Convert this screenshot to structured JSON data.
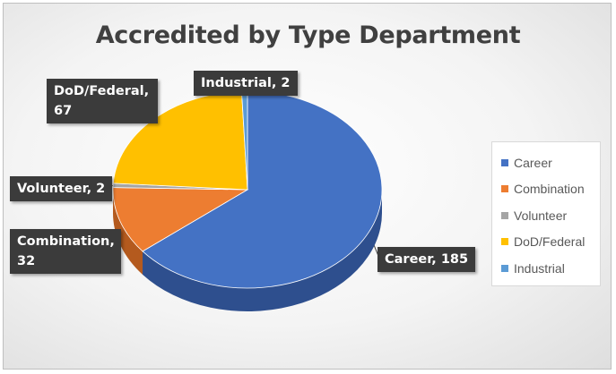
{
  "chart_data": {
    "type": "pie",
    "title": "Accredited by Type Department",
    "slices": [
      {
        "name": "Career",
        "value": 185,
        "label": "Career, 185",
        "color": "#4472C4",
        "side": "#2E4F8E"
      },
      {
        "name": "Combination",
        "value": 32,
        "label": "Combination, 32",
        "color": "#ED7D31",
        "side": "#B45A1E"
      },
      {
        "name": "Volunteer",
        "value": 2,
        "label": "Volunteer, 2",
        "color": "#A5A5A5",
        "side": "#7A7A7A"
      },
      {
        "name": "DoD/Federal",
        "value": 67,
        "label": "DoD/Federal, 67",
        "color": "#FFC000",
        "side": "#C79400"
      },
      {
        "name": "Industrial",
        "value": 2,
        "label": "Industrial, 2",
        "color": "#5B9BD5",
        "side": "#3E76A8"
      }
    ],
    "legend_position": "right",
    "style": "3d-pie"
  }
}
